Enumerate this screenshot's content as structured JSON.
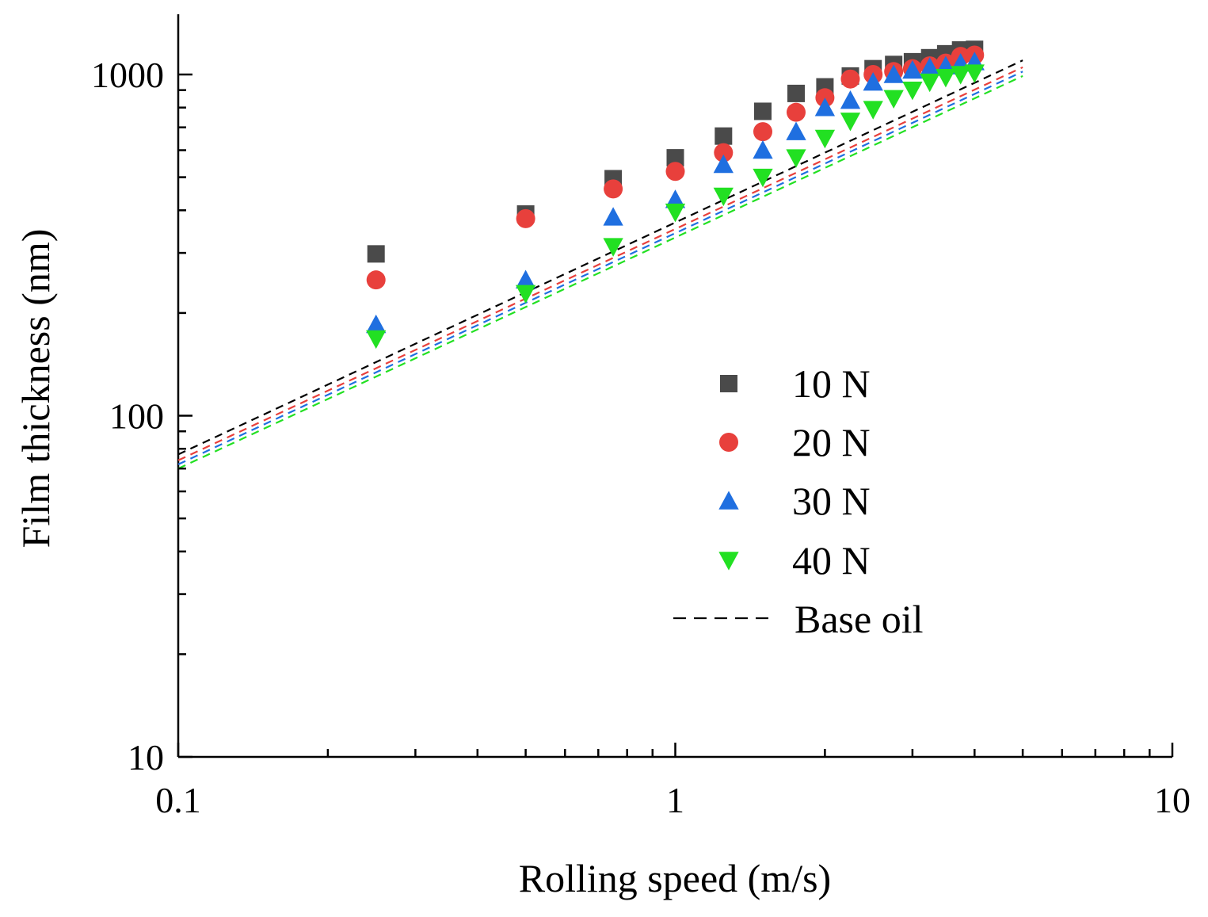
{
  "chart_data": {
    "type": "scatter",
    "xlabel": "Rolling speed (m/s)",
    "ylabel": "Film thickness (nm)",
    "xscale": "log",
    "yscale": "log",
    "xlim": [
      0.1,
      10
    ],
    "ylim": [
      10,
      1600
    ],
    "xticks": [
      {
        "value": 0.1,
        "label": "0.1"
      },
      {
        "value": 1,
        "label": "1"
      },
      {
        "value": 10,
        "label": "10"
      }
    ],
    "yticks": [
      {
        "value": 10,
        "label": "10"
      },
      {
        "value": 100,
        "label": "100"
      },
      {
        "value": 1000,
        "label": "1000"
      }
    ],
    "grid": false,
    "legend_position": "right",
    "series": [
      {
        "name": "10 N",
        "marker": "square",
        "color": "#4a4a4a",
        "x": [
          0.25,
          0.5,
          0.75,
          1.0,
          1.25,
          1.5,
          1.75,
          2.0,
          2.25,
          2.5,
          2.75,
          3.0,
          3.25,
          3.5,
          3.75,
          4.0
        ],
        "y": [
          298,
          390,
          495,
          570,
          660,
          780,
          880,
          920,
          990,
          1040,
          1070,
          1090,
          1120,
          1150,
          1180,
          1185
        ]
      },
      {
        "name": "20 N",
        "marker": "circle",
        "color": "#e8403c",
        "x": [
          0.25,
          0.5,
          0.75,
          1.0,
          1.25,
          1.5,
          1.75,
          2.0,
          2.25,
          2.5,
          2.75,
          3.0,
          3.25,
          3.5,
          3.75,
          4.0
        ],
        "y": [
          250,
          378,
          462,
          520,
          590,
          680,
          775,
          855,
          970,
          1000,
          1020,
          1040,
          1060,
          1080,
          1130,
          1140
        ]
      },
      {
        "name": "30 N",
        "marker": "triangle-up",
        "color": "#1f6fe0",
        "x": [
          0.25,
          0.5,
          0.75,
          1.0,
          1.25,
          1.5,
          1.75,
          2.0,
          2.25,
          2.5,
          2.75,
          3.0,
          3.25,
          3.5,
          3.75,
          4.0
        ],
        "y": [
          185,
          250,
          382,
          430,
          545,
          600,
          680,
          800,
          840,
          950,
          1000,
          1030,
          1050,
          1060,
          1080,
          1090
        ]
      },
      {
        "name": "40 N",
        "marker": "triangle-down",
        "color": "#22e022",
        "x": [
          0.25,
          0.5,
          0.75,
          1.0,
          1.25,
          1.5,
          1.75,
          2.0,
          2.25,
          2.5,
          2.75,
          3.0,
          3.25,
          3.5,
          3.75,
          4.0
        ],
        "y": [
          168,
          228,
          313,
          395,
          440,
          500,
          570,
          650,
          730,
          790,
          850,
          900,
          950,
          980,
          1000,
          1010
        ]
      }
    ],
    "base_oil": {
      "name": "Base oil",
      "style": "dashed",
      "x_range": [
        0.1,
        5
      ],
      "lines": [
        {
          "color": "#000000",
          "y_at_x_min": 77,
          "y_at_x_max": 1100
        },
        {
          "color": "#e8403c",
          "y_at_x_min": 74,
          "y_at_x_max": 1050
        },
        {
          "color": "#1f6fe0",
          "y_at_x_min": 72,
          "y_at_x_max": 1020
        },
        {
          "color": "#22e022",
          "y_at_x_min": 70,
          "y_at_x_max": 990
        }
      ]
    }
  }
}
